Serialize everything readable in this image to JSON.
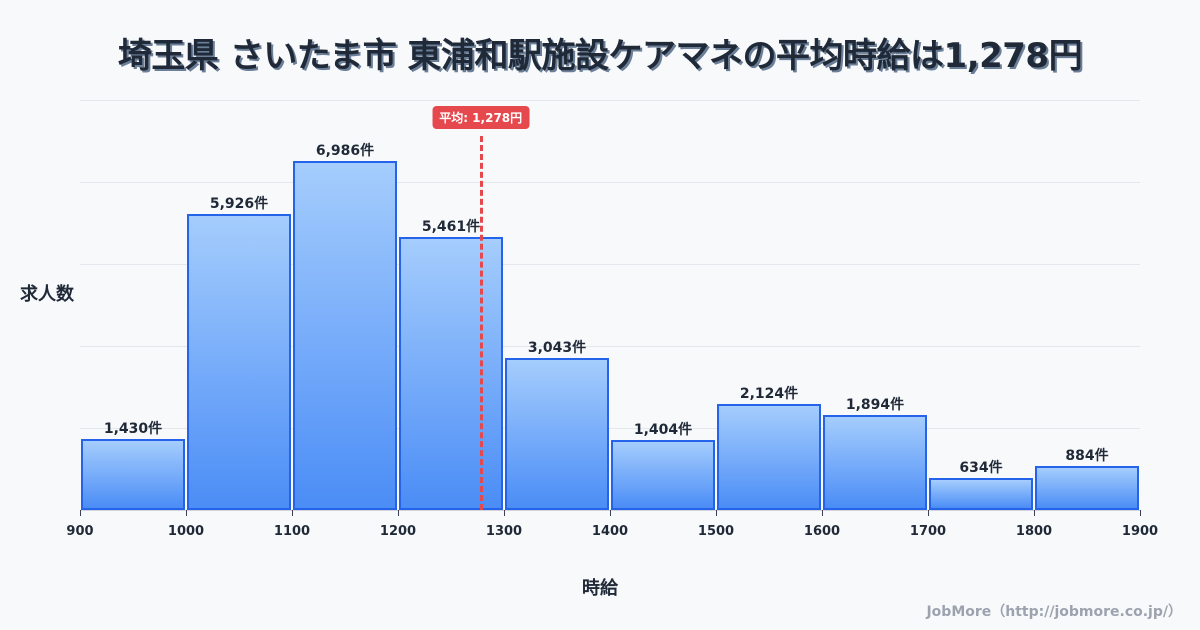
{
  "title": "埼玉県 さいたま市 東浦和駅施設ケアマネの平均時給は1,278円",
  "credit": "JobMore（http://jobmore.co.jp/）",
  "mean_badge": "平均: 1,278円",
  "colors": {
    "bar_border": "#2563eb",
    "bar_top": "#a5cdfd",
    "bar_bottom": "#4b8df6",
    "mean": "#e5484d"
  },
  "chart_data": {
    "type": "bar",
    "title": "埼玉県 さいたま市 東浦和駅施設ケアマネの平均時給は1,278円",
    "xlabel": "時給",
    "ylabel": "求人数",
    "bins": [
      [
        900,
        1000
      ],
      [
        1000,
        1100
      ],
      [
        1100,
        1200
      ],
      [
        1200,
        1300
      ],
      [
        1300,
        1400
      ],
      [
        1400,
        1500
      ],
      [
        1500,
        1600
      ],
      [
        1600,
        1700
      ],
      [
        1700,
        1800
      ],
      [
        1800,
        1900
      ]
    ],
    "categories": [
      "900-1000",
      "1000-1100",
      "1100-1200",
      "1200-1300",
      "1300-1400",
      "1400-1500",
      "1500-1600",
      "1600-1700",
      "1700-1800",
      "1800-1900"
    ],
    "values": [
      1430,
      5926,
      6986,
      5461,
      3043,
      1404,
      2124,
      1894,
      634,
      884
    ],
    "value_labels": [
      "1,430件",
      "5,926件",
      "6,986件",
      "5,461件",
      "3,043件",
      "1,404件",
      "2,124件",
      "1,894件",
      "634件",
      "884件"
    ],
    "x_ticks": [
      "900",
      "1000",
      "1100",
      "1200",
      "1300",
      "1400",
      "1500",
      "1600",
      "1700",
      "1800",
      "1900"
    ],
    "xlim": [
      900,
      1900
    ],
    "ylim": [
      0,
      8200
    ],
    "grid": true,
    "mean": 1278,
    "mean_label": "平均: 1,278円"
  }
}
